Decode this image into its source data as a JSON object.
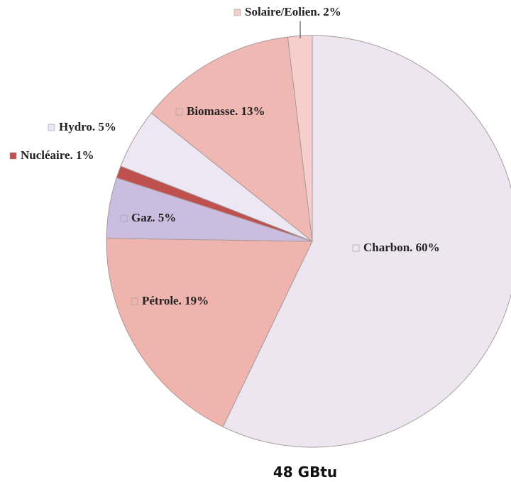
{
  "chart_data": {
    "type": "pie",
    "title": "48 GBtu",
    "categories": [
      "Charbon. 60%",
      "Pétrole. 19%",
      "Gaz. 5%",
      "Nucléaire. 1%",
      "Hydro. 5%",
      "Biomasse. 13%",
      "Solaire/Eolien. 2%"
    ],
    "values": [
      60,
      19,
      5,
      1,
      5,
      13,
      2
    ],
    "colors": [
      "#ede6f1",
      "#f0b4ae",
      "#cbbde0",
      "#c0504d",
      "#ece7f3",
      "#f0b8b2",
      "#f6cfcd"
    ]
  }
}
